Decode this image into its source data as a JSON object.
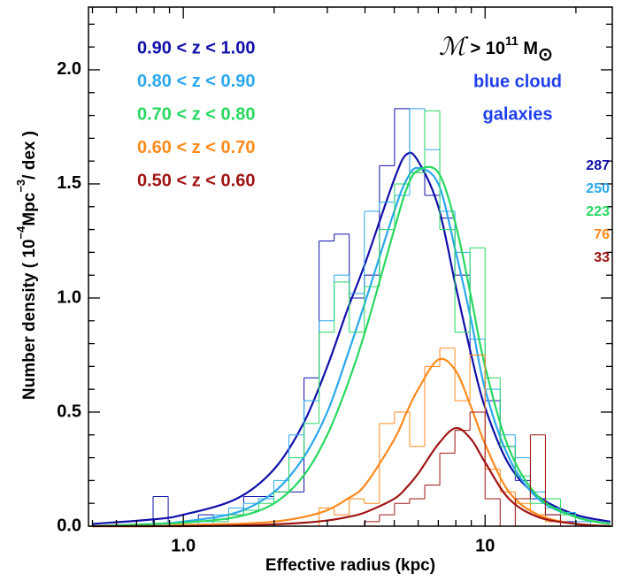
{
  "chart_data": {
    "type": "histogram",
    "xlabel": "Effective radius (kpc)",
    "ylabel": {
      "pre": "Number density ( 10",
      "exp1": "−4",
      "mid": "Mpc",
      "exp2": "−3",
      "post": "/ dex )"
    },
    "annotation": {
      "symbol": "ℳ",
      "relation": " > 10",
      "power": "11",
      "unit": " M",
      "sun": "⊙",
      "line1": "blue cloud",
      "line2": "galaxies",
      "color": "#1e3ff0"
    },
    "log_x": true,
    "xlim": [
      0.485,
      26.4
    ],
    "ylim": [
      0,
      2.275
    ],
    "xticks": [
      {
        "value": 1,
        "label": "1.0"
      },
      {
        "value": 10,
        "label": "10"
      }
    ],
    "xminor": [
      0.5,
      0.6,
      0.7,
      0.8,
      0.9,
      2,
      3,
      4,
      5,
      6,
      7,
      8,
      9,
      20
    ],
    "yticks": [
      {
        "value": 0,
        "label": "0.0"
      },
      {
        "value": 0.5,
        "label": "0.5"
      },
      {
        "value": 1,
        "label": "1.0"
      },
      {
        "value": 1.5,
        "label": "1.5"
      },
      {
        "value": 2,
        "label": "2.0"
      }
    ],
    "yminor": [
      0.1,
      0.2,
      0.3,
      0.4,
      0.6,
      0.7,
      0.8,
      0.9,
      1.1,
      1.2,
      1.3,
      1.4,
      1.6,
      1.7,
      1.8,
      1.9,
      2.1,
      2.2
    ],
    "bins": [
      0.794,
      0.891,
      1.0,
      1.122,
      1.259,
      1.413,
      1.585,
      1.778,
      1.995,
      2.239,
      2.512,
      2.818,
      3.162,
      3.548,
      3.981,
      4.467,
      5.012,
      5.623,
      6.31,
      7.079,
      7.943,
      8.913,
      10.0,
      11.22,
      12.59,
      14.13,
      15.85,
      17.78,
      19.95,
      22.39
    ],
    "curve_x": [
      0.5,
      0.8,
      1,
      1.5,
      2,
      2.5,
      3,
      3.5,
      4,
      5,
      5.5,
      6,
      7,
      8,
      9,
      10,
      12,
      15,
      20,
      26
    ],
    "series": [
      {
        "name": "0.90 < z < 1.00",
        "color": "#1010aa",
        "count": 287,
        "values": [
          0.13,
          0,
          0.02,
          0.05,
          0.03,
          0.05,
          0.13,
          0.13,
          0.15,
          0.15,
          0.65,
          1.25,
          1.28,
          1.0,
          1.1,
          1.58,
          1.83,
          1.55,
          1.45,
          1.35,
          1.1,
          0.75,
          0.55,
          0.35,
          0.2,
          0.12,
          0.05,
          0.02,
          0
        ],
        "curve_values": [
          0.01,
          0.03,
          0.05,
          0.12,
          0.25,
          0.45,
          0.7,
          0.95,
          1.15,
          1.52,
          1.63,
          1.6,
          1.4,
          1.05,
          0.75,
          0.52,
          0.27,
          0.13,
          0.05,
          0.02
        ]
      },
      {
        "name": "0.80 < z < 0.90",
        "color": "#2aa8ee",
        "count": 250,
        "values": [
          0,
          0,
          0,
          0.02,
          0.05,
          0.08,
          0.1,
          0.12,
          0.2,
          0.4,
          0.55,
          0.9,
          1.1,
          1.02,
          1.38,
          1.42,
          1.45,
          1.83,
          1.65,
          1.38,
          1.2,
          0.82,
          0.6,
          0.4,
          0.3,
          0.15,
          0.08,
          0.06,
          0.02
        ],
        "curve_values": [
          0,
          0.01,
          0.02,
          0.06,
          0.15,
          0.3,
          0.5,
          0.75,
          0.98,
          1.38,
          1.52,
          1.57,
          1.5,
          1.2,
          0.9,
          0.6,
          0.3,
          0.12,
          0.04,
          0.01
        ]
      },
      {
        "name": "0.70 < z < 0.80",
        "color": "#28d860",
        "count": 223,
        "values": [
          0,
          0,
          0,
          0,
          0.02,
          0.05,
          0.07,
          0.1,
          0.15,
          0.3,
          0.45,
          0.85,
          1.07,
          0.85,
          1.05,
          1.3,
          1.5,
          1.55,
          1.82,
          1.3,
          0.85,
          1.22,
          0.65,
          0.35,
          0.22,
          0.1,
          0.12,
          0.05,
          0
        ],
        "curve_values": [
          0,
          0.01,
          0.015,
          0.04,
          0.1,
          0.22,
          0.4,
          0.62,
          0.85,
          1.3,
          1.48,
          1.56,
          1.55,
          1.32,
          1.0,
          0.7,
          0.34,
          0.13,
          0.04,
          0.01
        ]
      },
      {
        "name": "0.60 < z < 0.70",
        "color": "#ff8a1c",
        "count": 76,
        "values": [
          0,
          0,
          0,
          0,
          0,
          0,
          0,
          0,
          0,
          0,
          0,
          0.08,
          0.05,
          0.12,
          0.1,
          0.45,
          0.5,
          0.35,
          0.7,
          0.78,
          0.55,
          0.75,
          0.25,
          0.15,
          0.1,
          0.05,
          0.02,
          0,
          0
        ],
        "curve_values": [
          0,
          0,
          0.005,
          0.01,
          0.02,
          0.04,
          0.07,
          0.12,
          0.18,
          0.38,
          0.5,
          0.6,
          0.73,
          0.68,
          0.52,
          0.36,
          0.15,
          0.05,
          0.01,
          0
        ]
      },
      {
        "name": "0.50 < z < 0.60",
        "color": "#a01414",
        "count": 33,
        "values": [
          0,
          0,
          0,
          0,
          0,
          0,
          0,
          0,
          0,
          0,
          0,
          0,
          0,
          0,
          0.02,
          0.05,
          0.1,
          0.12,
          0.18,
          0.32,
          0.42,
          0.5,
          0.12,
          0,
          0.12,
          0.4,
          0.05,
          0,
          0
        ],
        "curve_values": [
          0,
          0,
          0,
          0.003,
          0.008,
          0.015,
          0.025,
          0.04,
          0.06,
          0.12,
          0.17,
          0.23,
          0.36,
          0.43,
          0.38,
          0.28,
          0.12,
          0.04,
          0.01,
          0
        ]
      }
    ]
  }
}
